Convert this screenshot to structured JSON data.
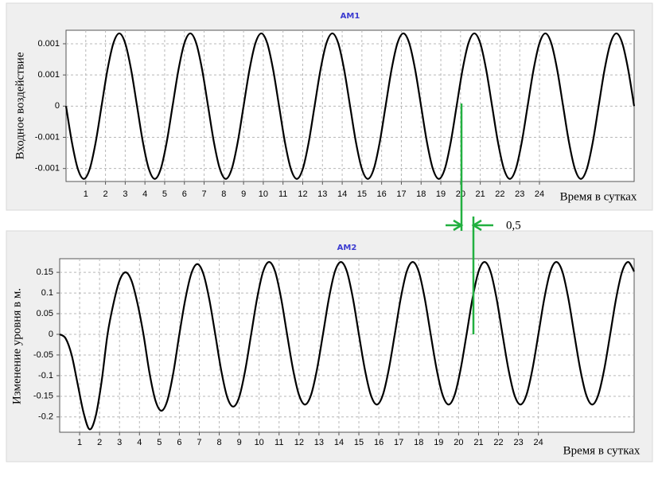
{
  "chart_data": [
    {
      "type": "line",
      "title": "AM1",
      "y_label": "Входное воздействие",
      "x_label": "Время в сутках",
      "color": "#000000",
      "grid": true,
      "x": [
        0,
        0.3,
        0.6,
        0.9,
        1.2,
        1.5,
        1.8,
        2.1,
        2.4,
        2.7,
        3,
        3.3,
        3.6,
        3.9,
        4.2,
        4.5,
        4.8,
        5.1,
        5.4,
        5.7,
        6,
        6.3,
        6.6,
        6.9,
        7.2,
        7.5,
        7.8,
        8.1,
        8.4,
        8.7,
        9,
        9.3,
        9.6,
        9.9,
        10.2,
        10.5,
        10.8,
        11.1,
        11.4,
        11.7,
        12,
        12.3,
        12.6,
        12.9,
        13.2,
        13.5,
        13.8,
        14.1,
        14.4,
        14.7,
        15,
        15.3,
        15.6,
        15.9,
        16.2,
        16.5,
        16.8,
        17.1,
        17.4,
        17.7,
        18,
        18.3,
        18.6,
        18.9,
        19.2,
        19.5,
        19.8,
        20.1,
        20.4,
        20.7,
        21,
        21.3,
        21.6,
        21.9,
        22.2,
        22.5,
        22.8,
        23.1,
        23.4,
        23.7,
        24,
        24.3,
        24.6,
        24.9,
        25.2,
        25.5,
        25.8,
        26.1,
        26.4,
        26.7,
        27,
        27.3,
        27.6,
        27.9,
        28.2,
        28.5,
        28.8
      ],
      "values": [
        0,
        -0.0007,
        -0.00121,
        -0.0014,
        -0.00121,
        -0.0007,
        0,
        0.0007,
        0.00121,
        0.0014,
        0.00121,
        0.0007,
        0,
        -0.0007,
        -0.00121,
        -0.0014,
        -0.00121,
        -0.0007,
        0,
        0.0007,
        0.00121,
        0.0014,
        0.00121,
        0.0007,
        0,
        -0.0007,
        -0.00121,
        -0.0014,
        -0.00121,
        -0.0007,
        0,
        0.0007,
        0.00121,
        0.0014,
        0.00121,
        0.0007,
        0,
        -0.0007,
        -0.00121,
        -0.0014,
        -0.00121,
        -0.0007,
        0,
        0.0007,
        0.00121,
        0.0014,
        0.00121,
        0.0007,
        0,
        -0.0007,
        -0.00121,
        -0.0014,
        -0.00121,
        -0.0007,
        0,
        0.0007,
        0.00121,
        0.0014,
        0.00121,
        0.0007,
        0,
        -0.0007,
        -0.00121,
        -0.0014,
        -0.00121,
        -0.0007,
        0,
        0.0007,
        0.00121,
        0.0014,
        0.00121,
        0.0007,
        0,
        -0.0007,
        -0.00121,
        -0.0014,
        -0.00121,
        -0.0007,
        0,
        0.0007,
        0.00121,
        0.0014,
        0.00121,
        0.0007,
        0,
        -0.0007,
        -0.00121,
        -0.0014,
        -0.00121,
        -0.0007,
        0,
        0.0007,
        0.00121,
        0.0014,
        0.00121,
        0.0007,
        0
      ],
      "xlim": [
        0,
        28.8
      ],
      "xticks": [
        1,
        2,
        3,
        4,
        5,
        6,
        7,
        8,
        9,
        10,
        11,
        12,
        13,
        14,
        15,
        16,
        17,
        18,
        19,
        20,
        21,
        22,
        23,
        24
      ],
      "ylim": [
        -0.00145,
        0.00146
      ],
      "yticks": [
        {
          "value": 0.0012,
          "label": "0.001"
        },
        {
          "value": 0.0006,
          "label": "0.001"
        },
        0,
        {
          "value": -0.0006,
          "label": "-0.001"
        },
        {
          "value": -0.0012,
          "label": "-0.001"
        }
      ]
    },
    {
      "type": "line",
      "title": "AM2",
      "y_label": "Изменение  уровня в м.",
      "x_label": "Время в сутках",
      "color": "#000000",
      "grid": true,
      "x": [
        0,
        0.3,
        0.6,
        0.9,
        1.2,
        1.5,
        1.8,
        2.1,
        2.4,
        2.7,
        3,
        3.3,
        3.6,
        3.9,
        4.2,
        4.5,
        4.8,
        5.1,
        5.4,
        5.7,
        6,
        6.3,
        6.6,
        6.9,
        7.2,
        7.5,
        7.8,
        8.1,
        8.4,
        8.7,
        9,
        9.3,
        9.6,
        9.9,
        10.2,
        10.5,
        10.8,
        11.1,
        11.4,
        11.7,
        12,
        12.3,
        12.6,
        12.9,
        13.2,
        13.5,
        13.8,
        14.1,
        14.4,
        14.7,
        15,
        15.3,
        15.6,
        15.9,
        16.2,
        16.5,
        16.8,
        17.1,
        17.4,
        17.7,
        18,
        18.3,
        18.6,
        18.9,
        19.2,
        19.5,
        19.8,
        20.1,
        20.4,
        20.7,
        21,
        21.3,
        21.6,
        21.9,
        22.2,
        22.5,
        22.8,
        23.1,
        23.4,
        23.7,
        24,
        24.3,
        24.6,
        24.9,
        25.2,
        25.5,
        25.8,
        26.1,
        26.4,
        26.7,
        27,
        27.3,
        27.6,
        27.9,
        28.2,
        28.5,
        28.8
      ],
      "values": [
        0,
        -0.01,
        -0.05,
        -0.12,
        -0.19,
        -0.23,
        -0.199,
        -0.115,
        0,
        0.075,
        0.13,
        0.15,
        0.13,
        0.075,
        0,
        -0.0925,
        -0.16,
        -0.185,
        -0.16,
        -0.0925,
        0,
        0.085,
        0.147,
        0.17,
        0.147,
        0.085,
        0,
        -0.0875,
        -0.152,
        -0.175,
        -0.152,
        -0.0875,
        0,
        0.0875,
        0.152,
        0.175,
        0.152,
        0.0875,
        0,
        -0.085,
        -0.147,
        -0.17,
        -0.147,
        -0.085,
        0,
        0.0875,
        0.152,
        0.175,
        0.152,
        0.0875,
        0,
        -0.085,
        -0.147,
        -0.17,
        -0.147,
        -0.085,
        0,
        0.0875,
        0.152,
        0.175,
        0.152,
        0.0875,
        0,
        -0.085,
        -0.147,
        -0.17,
        -0.147,
        -0.085,
        0,
        0.0875,
        0.152,
        0.175,
        0.152,
        0.0875,
        0,
        -0.085,
        -0.147,
        -0.17,
        -0.147,
        -0.085,
        0,
        0.0875,
        0.152,
        0.175,
        0.152,
        0.0875,
        0,
        -0.085,
        -0.147,
        -0.17,
        -0.147,
        -0.085,
        0,
        0.0875,
        0.152,
        0.175,
        0.152
      ],
      "xlim": [
        0,
        28.8
      ],
      "xticks": [
        1,
        2,
        3,
        4,
        5,
        6,
        7,
        8,
        9,
        10,
        11,
        12,
        13,
        14,
        15,
        16,
        17,
        18,
        19,
        20,
        21,
        22,
        23,
        24
      ],
      "ylim": [
        -0.237,
        0.183
      ],
      "yticks": [
        0.15,
        0.1,
        0.05,
        0,
        -0.05,
        -0.1,
        -0.15,
        -0.2
      ]
    }
  ],
  "annotation": "0,5"
}
